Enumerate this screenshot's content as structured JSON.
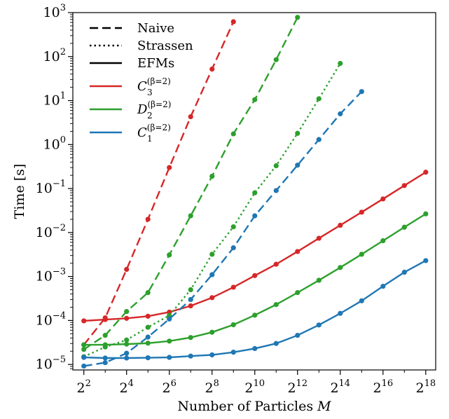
{
  "chart_data": {
    "type": "line",
    "title": "",
    "xlabel": "Number of Particles",
    "xlabel_var": "M",
    "ylabel": "Time [s]",
    "xscale": "log2",
    "yscale": "log10",
    "xlim": [
      2.8,
      362000
    ],
    "ylim": [
      7.5e-06,
      1000
    ],
    "x_ticks": [
      {
        "base": "2",
        "exp": "2"
      },
      {
        "base": "2",
        "exp": "4"
      },
      {
        "base": "2",
        "exp": "6"
      },
      {
        "base": "2",
        "exp": "8"
      },
      {
        "base": "2",
        "exp": "10"
      },
      {
        "base": "2",
        "exp": "12"
      },
      {
        "base": "2",
        "exp": "14"
      },
      {
        "base": "2",
        "exp": "16"
      },
      {
        "base": "2",
        "exp": "18"
      }
    ],
    "y_ticks": [
      {
        "base": "10",
        "exp": "−5"
      },
      {
        "base": "10",
        "exp": "−4"
      },
      {
        "base": "10",
        "exp": "−3"
      },
      {
        "base": "10",
        "exp": "−2"
      },
      {
        "base": "10",
        "exp": "−1"
      },
      {
        "base": "10",
        "exp": "0"
      },
      {
        "base": "10",
        "exp": "1"
      },
      {
        "base": "10",
        "exp": "2"
      },
      {
        "base": "10",
        "exp": "3"
      }
    ],
    "legend": {
      "placement": "top-left",
      "styles": [
        {
          "label": "Naive",
          "dash": "dashed"
        },
        {
          "label": "Strassen",
          "dash": "dotted"
        },
        {
          "label": "EFMs",
          "dash": "solid"
        }
      ],
      "colors": [
        {
          "main": "C",
          "sub": "3",
          "sup": "(β=2)",
          "color": "#d62728"
        },
        {
          "main": "D",
          "sub": "2",
          "sup": "(β=2)",
          "color": "#2ca02c"
        },
        {
          "main": "C",
          "sub": "1",
          "sup": "(β=2)",
          "color": "#1f77b4"
        }
      ]
    },
    "series": [
      {
        "color": "#d62728",
        "dash": "dashed",
        "x": [
          4,
          8,
          16,
          32,
          64,
          128,
          256,
          512
        ],
        "y": [
          2.8e-05,
          0.000115,
          0.00145,
          0.02,
          0.3,
          4.3,
          52,
          620
        ]
      },
      {
        "color": "#d62728",
        "dash": "solid",
        "x": [
          4,
          8,
          16,
          32,
          64,
          128,
          256,
          512,
          1024,
          2048,
          4096,
          8192,
          16384,
          32768,
          65536,
          131072,
          262144
        ],
        "y": [
          9.8e-05,
          0.000105,
          0.000112,
          0.000125,
          0.000155,
          0.000215,
          0.00033,
          0.00057,
          0.00105,
          0.0019,
          0.0037,
          0.0074,
          0.0146,
          0.029,
          0.058,
          0.117,
          0.235
        ]
      },
      {
        "color": "#2ca02c",
        "dash": "dashed",
        "x": [
          4,
          8,
          16,
          32,
          64,
          128,
          256,
          512,
          1024,
          2048,
          4096
        ],
        "y": [
          2.2e-05,
          4.6e-05,
          0.00016,
          0.00043,
          0.0031,
          0.024,
          0.19,
          1.75,
          10.5,
          85,
          780
        ]
      },
      {
        "color": "#2ca02c",
        "dash": "dotted",
        "x": [
          4,
          8,
          16,
          32,
          64,
          128,
          256,
          512,
          1024,
          2048,
          4096,
          8192,
          16384
        ],
        "y": [
          1.5e-05,
          2.5e-05,
          3.6e-05,
          7e-05,
          0.00013,
          0.0005,
          0.0032,
          0.0135,
          0.08,
          0.33,
          1.8,
          11,
          70
        ]
      },
      {
        "color": "#2ca02c",
        "dash": "solid",
        "x": [
          4,
          8,
          16,
          32,
          64,
          128,
          256,
          512,
          1024,
          2048,
          4096,
          8192,
          16384,
          32768,
          65536,
          131072,
          262144
        ],
        "y": [
          2.8e-05,
          2.8e-05,
          2.9e-05,
          3.05e-05,
          3.4e-05,
          4.1e-05,
          5.4e-05,
          8e-05,
          0.000132,
          0.00023,
          0.00043,
          0.00082,
          0.0016,
          0.0032,
          0.0065,
          0.0132,
          0.0265
        ]
      },
      {
        "color": "#1f77b4",
        "dash": "dashed",
        "x": [
          4,
          8,
          16,
          32,
          64,
          128,
          256,
          512,
          1024,
          2048,
          4096,
          8192,
          16384,
          32768
        ],
        "y": [
          9.2e-06,
          1.1e-05,
          1.8e-05,
          4.2e-05,
          0.000108,
          0.0003,
          0.0011,
          0.0045,
          0.024,
          0.09,
          0.34,
          1.3,
          5,
          16
        ]
      },
      {
        "color": "#1f77b4",
        "dash": "solid",
        "x": [
          4,
          8,
          16,
          32,
          64,
          128,
          256,
          512,
          1024,
          2048,
          4096,
          8192,
          16384,
          32768,
          65536,
          131072,
          262144
        ],
        "y": [
          1.45e-05,
          1.4e-05,
          1.4e-05,
          1.42e-05,
          1.45e-05,
          1.55e-05,
          1.65e-05,
          1.9e-05,
          2.3e-05,
          3e-05,
          4.6e-05,
          7.9e-05,
          0.000145,
          0.00028,
          0.0006,
          0.00125,
          0.0023
        ]
      }
    ]
  }
}
